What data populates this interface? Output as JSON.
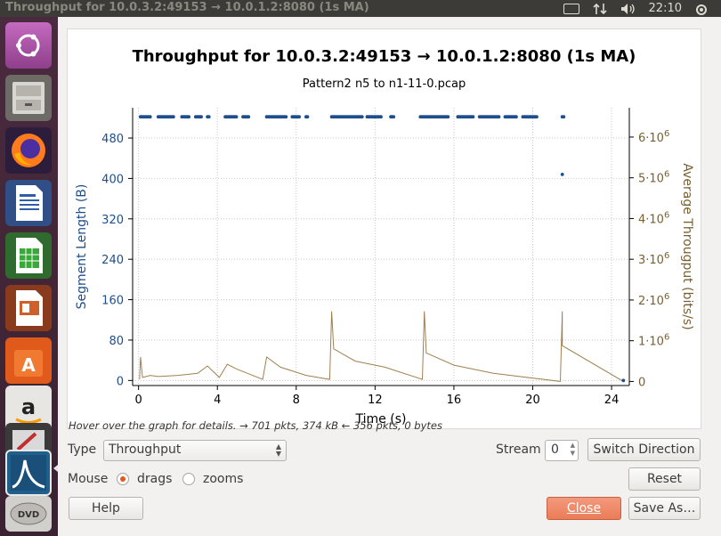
{
  "window": {
    "title": "Throughput for 10.0.3.2:49153 → 10.0.1.2:8080 (1s MA)"
  },
  "topbar": {
    "time": "22:10",
    "icons": [
      "keyboard-icon",
      "network-arrows-icon",
      "volume-icon",
      "power-gear-icon"
    ]
  },
  "launcher": {
    "apps": [
      "ubuntu-dash-icon",
      "files-icon",
      "firefox-icon",
      "writer-icon",
      "calc-icon",
      "impress-icon",
      "software-center-icon",
      "amazon-icon",
      "system-settings-icon",
      "wireshark-icon",
      "dvd-icon"
    ]
  },
  "chart_data": {
    "type": "scatter",
    "title": "Throughput for 10.0.3.2:49153 → 10.0.1.2:8080 (1s MA)",
    "subtitle": "Pattern2 n5 to n1-11-0.pcap",
    "xlabel": "Time (s)",
    "ylabel": "Segment Length (B)",
    "y2label": "Average Througput (bits/s)",
    "xlim": [
      -0.3,
      24.9
    ],
    "ylim": [
      -10,
      540
    ],
    "y2lim": [
      -0.1,
      6.72
    ],
    "xticks": [
      "0",
      "4",
      "8",
      "12",
      "16",
      "20",
      "24"
    ],
    "yticks": [
      "0",
      "80",
      "160",
      "240",
      "320",
      "400",
      "480"
    ],
    "y2ticks": [
      "0",
      "1·10⁶",
      "2·10⁶",
      "3·10⁶",
      "4·10⁶",
      "5·10⁶",
      "6·10⁶"
    ],
    "grid": true,
    "series": [
      {
        "name": "Segment Length",
        "color": "#1f4e8c",
        "axis": "left",
        "dot_clusters": [
          [
            0.1,
            0.6
          ],
          [
            1.0,
            1.8
          ],
          [
            2.2,
            2.6
          ],
          [
            2.9,
            3.2
          ],
          [
            3.5,
            3.6
          ],
          [
            4.4,
            5.0
          ],
          [
            5.3,
            5.6
          ],
          [
            6.5,
            7.5
          ],
          [
            7.8,
            8.2
          ],
          [
            8.5,
            8.6
          ],
          [
            9.8,
            11.4
          ],
          [
            11.6,
            12.3
          ],
          [
            12.8,
            13.0
          ],
          [
            14.3,
            15.7
          ],
          [
            16.2,
            17.0
          ],
          [
            17.3,
            18.3
          ],
          [
            18.6,
            19.2
          ],
          [
            19.5,
            20.2
          ],
          [
            21.5,
            21.6
          ]
        ],
        "points": [
          [
            21.5,
            408
          ],
          [
            24.6,
            0
          ]
        ]
      },
      {
        "name": "Average Throughput",
        "color": "#a08050",
        "axis": "right",
        "points": [
          [
            0.05,
            0.05
          ],
          [
            0.1,
            0.6
          ],
          [
            0.2,
            0.1
          ],
          [
            0.6,
            0.15
          ],
          [
            1.0,
            0.12
          ],
          [
            2.0,
            0.15
          ],
          [
            3.0,
            0.2
          ],
          [
            3.5,
            0.38
          ],
          [
            4.1,
            0.1
          ],
          [
            4.5,
            0.42
          ],
          [
            5.0,
            0.3
          ],
          [
            6.3,
            0.05
          ],
          [
            6.5,
            0.6
          ],
          [
            7.2,
            0.35
          ],
          [
            8.5,
            0.15
          ],
          [
            9.7,
            0.05
          ],
          [
            9.8,
            1.72
          ],
          [
            9.9,
            0.8
          ],
          [
            11.0,
            0.5
          ],
          [
            12.5,
            0.35
          ],
          [
            14.4,
            0.05
          ],
          [
            14.5,
            1.72
          ],
          [
            14.6,
            0.7
          ],
          [
            16.0,
            0.4
          ],
          [
            18.0,
            0.2
          ],
          [
            21.4,
            0.0
          ],
          [
            21.5,
            1.72
          ],
          [
            21.5,
            0.88
          ],
          [
            24.6,
            0.0
          ]
        ]
      }
    ]
  },
  "hint": "Hover over the graph for details. → 701 pkts, 374 kB ← 356 pkts, 0 bytes",
  "controls": {
    "type_label": "Type",
    "type_value": "Throughput",
    "stream_label": "Stream",
    "stream_value": "0",
    "switch_direction": "Switch Direction",
    "mouse_label": "Mouse",
    "drags_label": "drags",
    "zooms_label": "zooms",
    "mouse_mode": "drags",
    "reset": "Reset",
    "help": "Help",
    "close": "Close",
    "save_as": "Save As…"
  }
}
